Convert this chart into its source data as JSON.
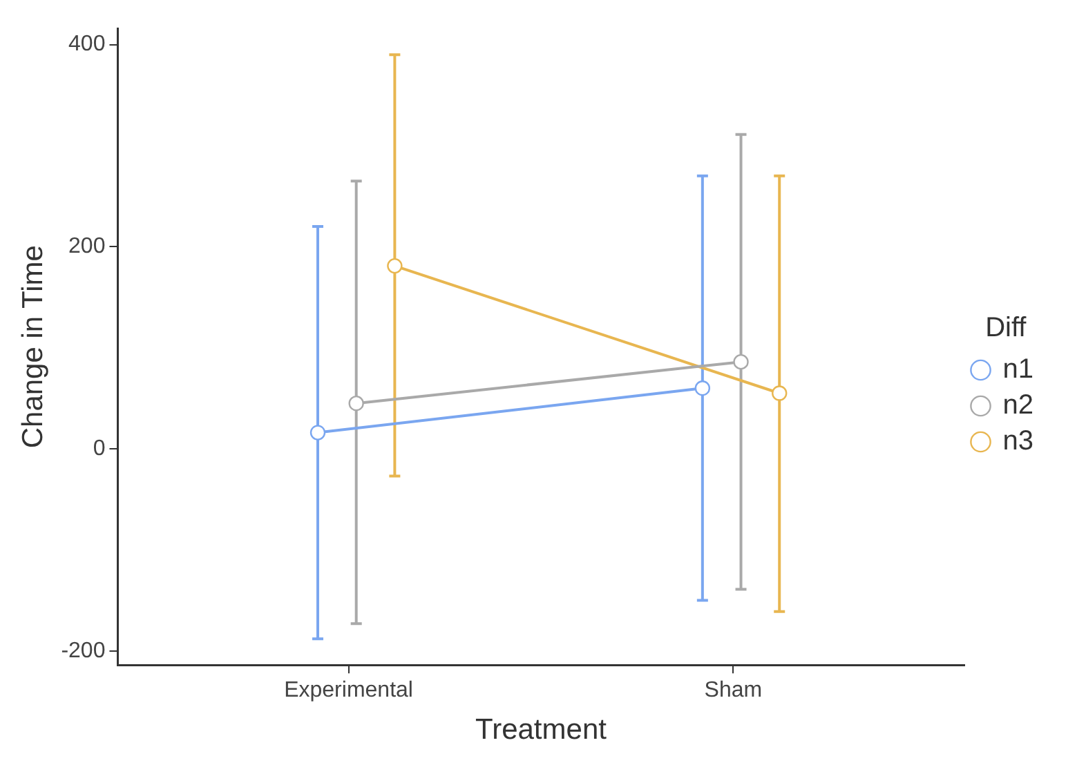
{
  "chart_data": {
    "type": "line",
    "xlabel": "Treatment",
    "ylabel": "Change in Time",
    "legend_title": "Diff",
    "categories": [
      "Experimental",
      "Sham"
    ],
    "series": [
      {
        "name": "n1",
        "color": "#7aa6f0",
        "values": [
          16,
          60
        ],
        "errors": [
          [
            -188,
            220
          ],
          [
            -150,
            270
          ]
        ]
      },
      {
        "name": "n2",
        "color": "#a9a9a9",
        "values": [
          45,
          86
        ],
        "errors": [
          [
            -173,
            265
          ],
          [
            -139,
            311
          ]
        ]
      },
      {
        "name": "n3",
        "color": "#e8b650",
        "values": [
          181,
          55
        ],
        "errors": [
          [
            -27,
            390
          ],
          [
            -161,
            270
          ]
        ]
      }
    ],
    "ylim": [
      -214,
      416
    ],
    "yticks": [
      -200,
      0,
      200,
      400
    ],
    "grid": false,
    "legend": "right",
    "marker": "circle",
    "line_style": "solid"
  }
}
